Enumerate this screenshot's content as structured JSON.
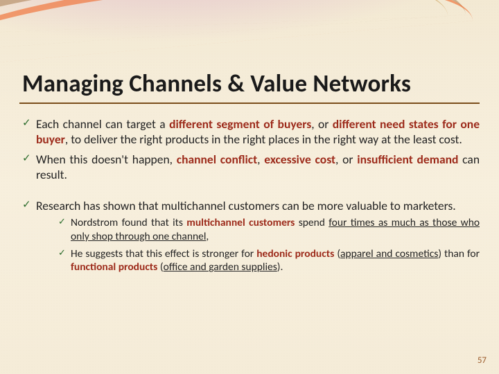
{
  "slide": {
    "title": "Managing Channels & Value Networks",
    "page_number": "57",
    "colors": {
      "background_base": "#f5ecd8",
      "title_text": "#1a1a1a",
      "title_underline": "#7a4d1a",
      "body_text": "#232323",
      "checkmark": "#2a6b2a",
      "emphasis_red": "#9c2a1a",
      "pagenum": "#9a5a2a",
      "swoosh_pink": "#d9a8ca",
      "swoosh_brown": "#a87c4e",
      "swoosh_orange": "#ef6e32"
    },
    "typography": {
      "title_font_size_pt": 26,
      "body_font_size_pt": 13,
      "sub_font_size_pt": 11.5,
      "font_family": "Calibri",
      "title_weight": 700
    },
    "bullets": {
      "b1": {
        "pre": "Each channel can target a ",
        "em1": "different segment of buyers",
        "mid1": ", or ",
        "em2": "different need states for one buyer",
        "post": ", to deliver the right products in the right places in the right way at the least cost."
      },
      "b2": {
        "pre": "When this doesn't happen, ",
        "em1": "channel conflict",
        "mid1": ", ",
        "em2": "excessive cost",
        "mid2": ", or ",
        "em3": "insufficient demand",
        "post": " can result."
      },
      "b3": {
        "text": "Research has shown that multichannel customers can be more valuable to marketers."
      },
      "sub1": {
        "pre": "Nordstrom found that its ",
        "em1": "multichannel customers",
        "mid1": " spend ",
        "u1": "four times as much as those who only shop through one channel",
        "post": ","
      },
      "sub2": {
        "pre": "He suggests that this effect is stronger for ",
        "em1": "hedonic products",
        "mid1": " (",
        "u1": "apparel and cosmetics",
        "mid2": ") than for ",
        "em2": "functional products",
        "mid3": " (",
        "u2": "office and garden supplies",
        "post": ")."
      }
    }
  }
}
